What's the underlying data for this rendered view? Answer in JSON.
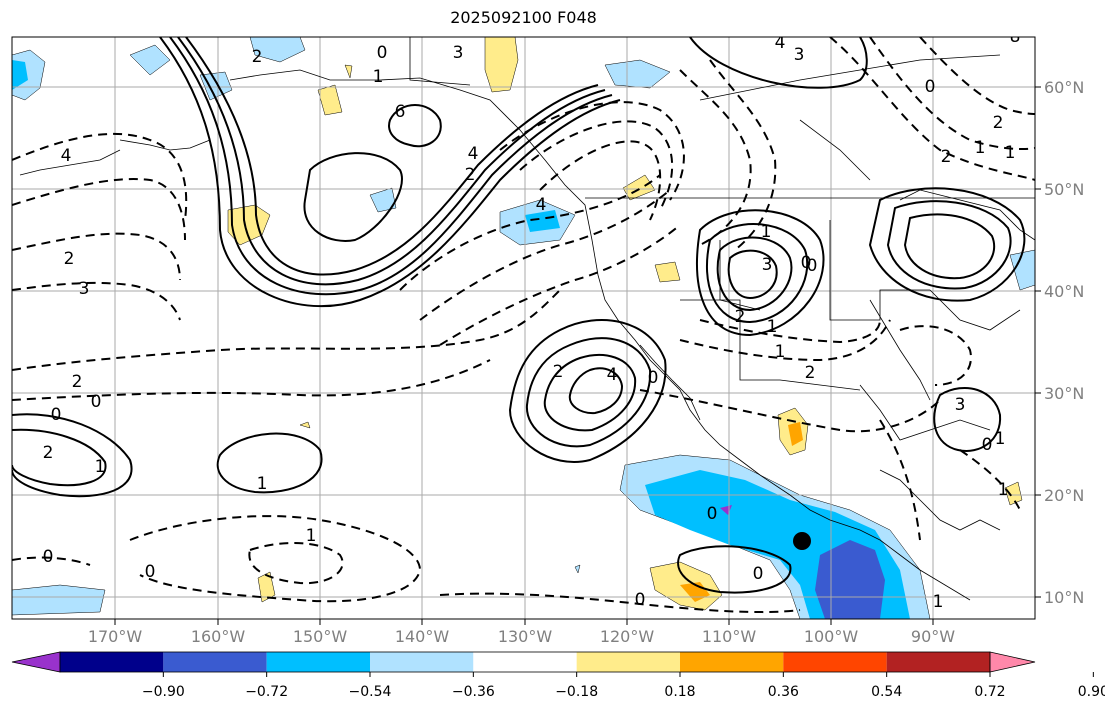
{
  "title": "2025092100 F048",
  "lon_labels": [
    "170°W",
    "160°W",
    "150°W",
    "140°W",
    "130°W",
    "120°W",
    "110°W",
    "100°W",
    "90°W"
  ],
  "lat_labels": [
    "60°N",
    "50°N",
    "40°N",
    "30°N",
    "20°N",
    "10°N"
  ],
  "colorbar": {
    "ticks": [
      "−0.90",
      "−0.72",
      "−0.54",
      "−0.36",
      "−0.18",
      "0.18",
      "0.36",
      "0.54",
      "0.72",
      "0.90"
    ],
    "colors": [
      "#9932cc",
      "#00008b",
      "#3a5bd0",
      "#00bfff",
      "#b0e2ff",
      "#ffffff",
      "#ffec8b",
      "#ffa500",
      "#ff4500",
      "#b22222",
      "#ff88aa"
    ]
  },
  "contour_labels": [
    "3",
    "2",
    "0",
    "1",
    "4",
    "3",
    "8",
    "0",
    "2",
    "1",
    "6",
    "4",
    "2",
    "4",
    "3",
    "4",
    "0",
    "2",
    "2",
    "1",
    "2",
    "1",
    "4",
    "2",
    "3",
    "2",
    "1",
    "0",
    "2",
    "1",
    "0",
    "1",
    "2",
    "0",
    "3",
    "1",
    "1",
    "0",
    "0",
    "0",
    "0",
    "0",
    "0",
    "1",
    "0",
    "1",
    "1"
  ]
}
